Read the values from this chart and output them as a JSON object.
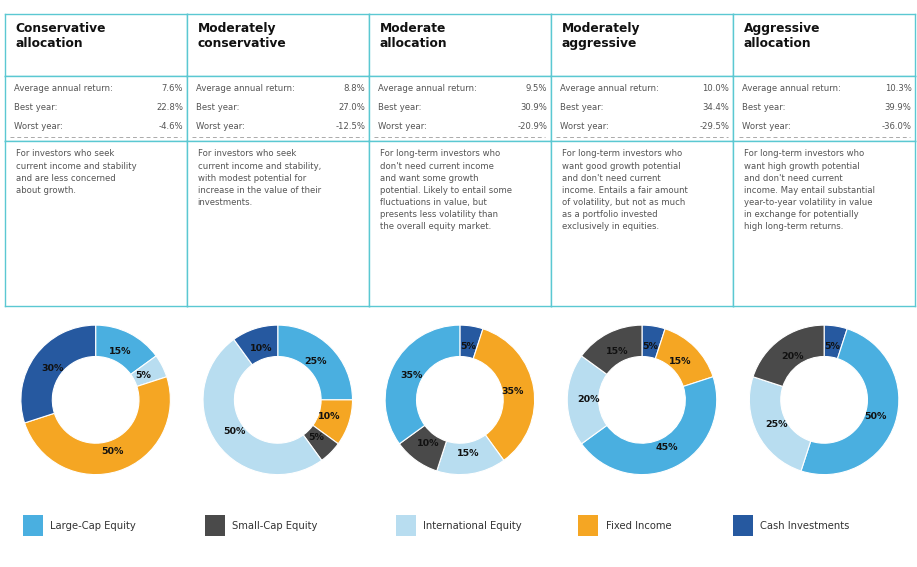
{
  "columns": [
    {
      "title": "Conservative\nallocation",
      "avg_return": "7.6%",
      "best_year": "22.8%",
      "worst_year": "-4.6%",
      "description": "For investors who seek\ncurrent income and stability\nand are less concerned\nabout growth.",
      "slices": [
        15,
        5,
        50,
        30
      ],
      "labels": [
        "15%",
        "5%",
        "50%",
        "30%"
      ],
      "label_rs": [
        0.75,
        0.75,
        0.75,
        0.75
      ],
      "colors": [
        "#4aafe0",
        "#b8ddf0",
        "#f5a623",
        "#2659a0"
      ]
    },
    {
      "title": "Moderately\nconservative",
      "avg_return": "8.8%",
      "best_year": "27.0%",
      "worst_year": "-12.5%",
      "description": "For investors who seek\ncurrent income and stability,\nwith modest potential for\nincrease in the value of their\ninvestments.",
      "slices": [
        25,
        10,
        5,
        50,
        10
      ],
      "labels": [
        "25%",
        "10%",
        "5%",
        "50%",
        "10%"
      ],
      "label_rs": [
        0.75,
        0.75,
        0.75,
        0.75,
        0.75
      ],
      "colors": [
        "#4aafe0",
        "#f5a623",
        "#4a4a4a",
        "#b8ddf0",
        "#2659a0"
      ]
    },
    {
      "title": "Moderate\nallocation",
      "avg_return": "9.5%",
      "best_year": "30.9%",
      "worst_year": "-20.9%",
      "description": "For long-term investors who\ndon't need current income\nand want some growth\npotential. Likely to entail some\nfluctuations in value, but\npresents less volatility than\nthe overall equity market.",
      "slices": [
        5,
        35,
        15,
        10,
        35
      ],
      "labels": [
        "5%",
        "35%",
        "15%",
        "10%",
        "35%"
      ],
      "label_rs": [
        0.75,
        0.75,
        0.75,
        0.75,
        0.75
      ],
      "colors": [
        "#2659a0",
        "#f5a623",
        "#b8ddf0",
        "#4a4a4a",
        "#4aafe0"
      ]
    },
    {
      "title": "Moderately\naggressive",
      "avg_return": "10.0%",
      "best_year": "34.4%",
      "worst_year": "-29.5%",
      "description": "For long-term investors who\nwant good growth potential\nand don't need current\nincome. Entails a fair amount\nof volatility, but not as much\nas a portfolio invested\nexclusively in equities.",
      "slices": [
        5,
        15,
        45,
        20,
        15
      ],
      "labels": [
        "5%",
        "15%",
        "45%",
        "20%",
        "15%"
      ],
      "label_rs": [
        0.75,
        0.75,
        0.75,
        0.75,
        0.75
      ],
      "colors": [
        "#2659a0",
        "#f5a623",
        "#4aafe0",
        "#b8ddf0",
        "#4a4a4a"
      ]
    },
    {
      "title": "Aggressive\nallocation",
      "avg_return": "10.3%",
      "best_year": "39.9%",
      "worst_year": "-36.0%",
      "description": "For long-term investors who\nwant high growth potential\nand don't need current\nincome. May entail substantial\nyear-to-year volatility in value\nin exchange for potentially\nhigh long-term returns.",
      "slices": [
        5,
        50,
        25,
        20
      ],
      "labels": [
        "5%",
        "50%",
        "25%",
        "20%"
      ],
      "label_rs": [
        0.75,
        0.75,
        0.75,
        0.75
      ],
      "colors": [
        "#2659a0",
        "#4aafe0",
        "#b8ddf0",
        "#4a4a4a"
      ]
    }
  ],
  "legend": [
    {
      "label": "Large-Cap Equity",
      "color": "#4aafe0"
    },
    {
      "label": "Small-Cap Equity",
      "color": "#4a4a4a"
    },
    {
      "label": "International Equity",
      "color": "#b8ddf0"
    },
    {
      "label": "Fixed Income",
      "color": "#f5a623"
    },
    {
      "label": "Cash Investments",
      "color": "#2659a0"
    }
  ],
  "bg_color": "#ffffff",
  "border_color": "#5bc8d2",
  "text_color": "#555555",
  "header_text_color": "#111111"
}
